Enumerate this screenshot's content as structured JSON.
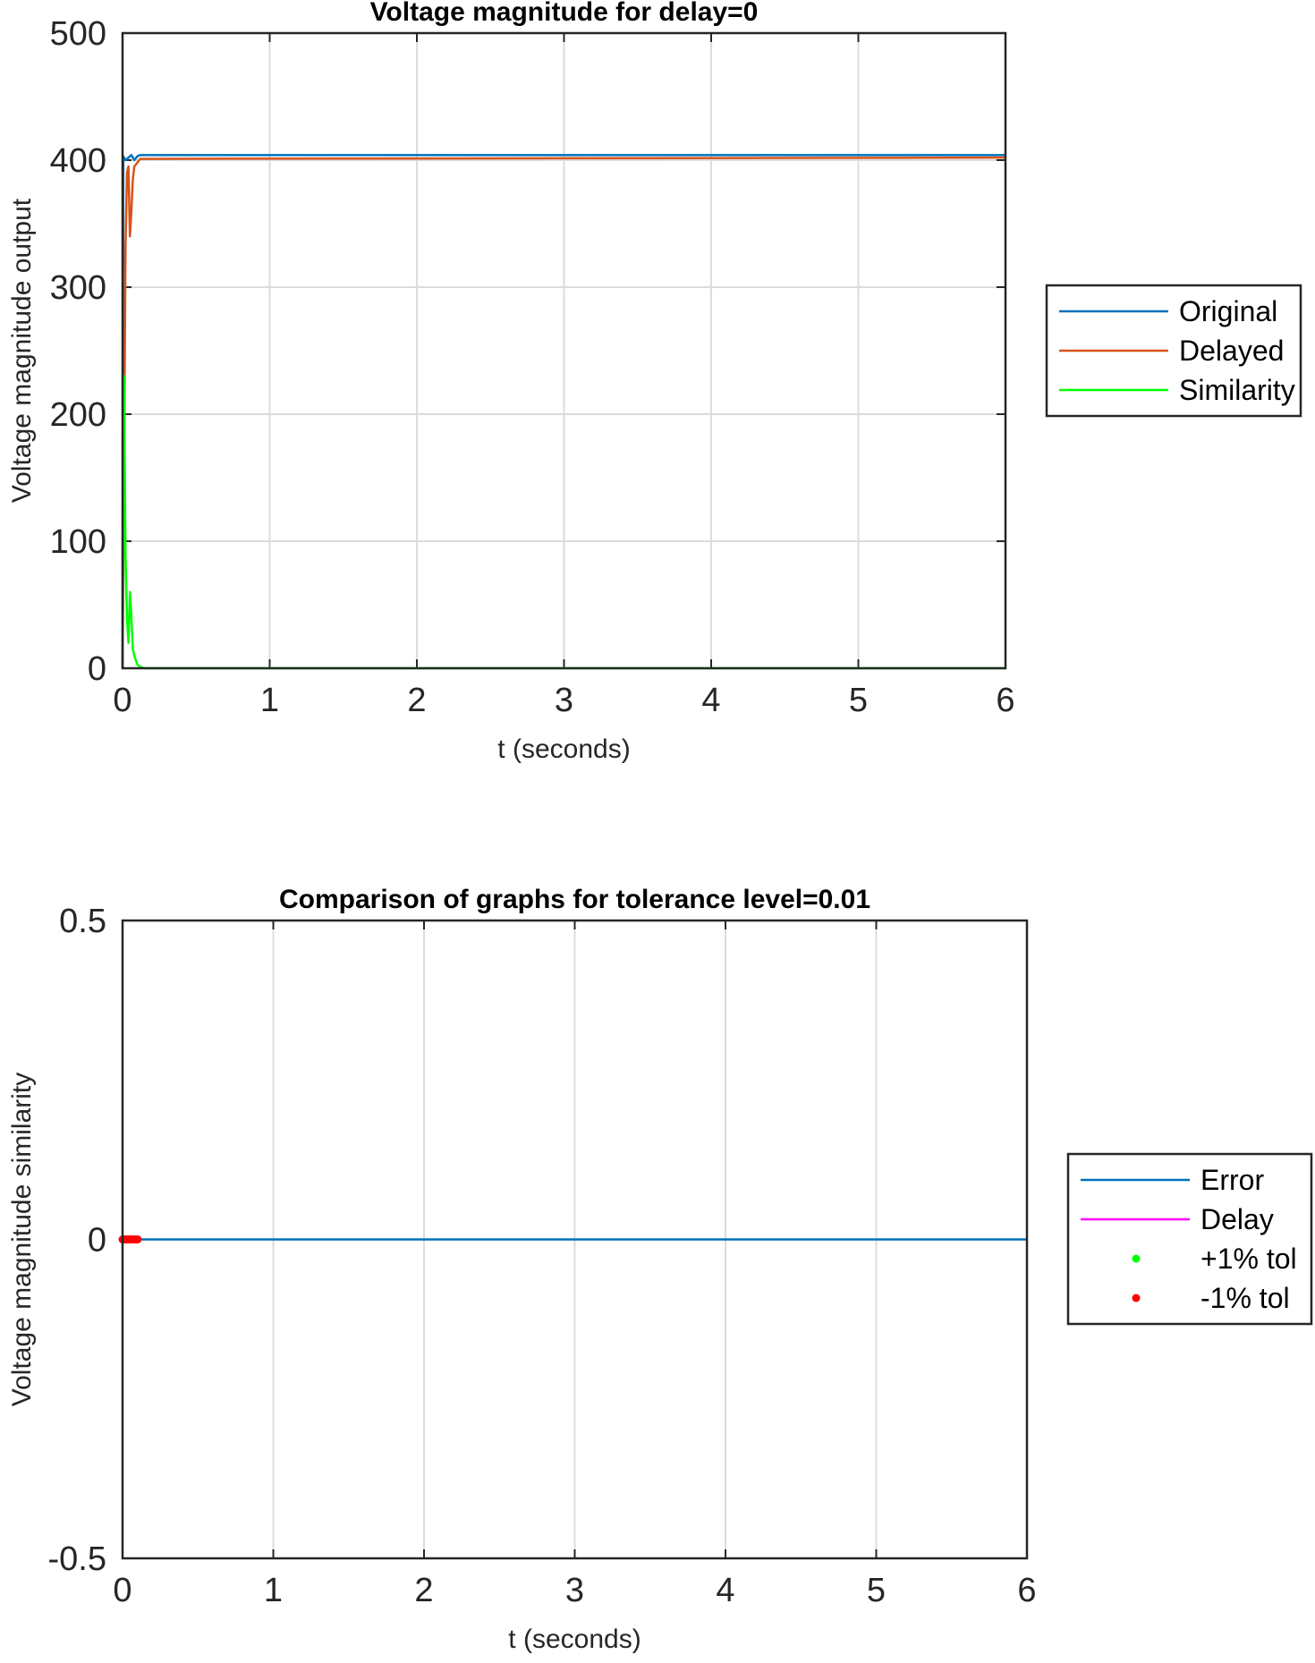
{
  "chart_data": [
    {
      "type": "line",
      "title": "Voltage magnitude for delay=0",
      "xlabel": "t (seconds)",
      "ylabel": "Voltage magnitude output",
      "xlim": [
        0,
        6
      ],
      "ylim": [
        0,
        500
      ],
      "xticks": [
        "0",
        "1",
        "2",
        "3",
        "4",
        "5",
        "6"
      ],
      "yticks": [
        "0",
        "100",
        "200",
        "300",
        "400",
        "500"
      ],
      "grid": true,
      "legend_position": "outside-right",
      "series": [
        {
          "name": "Original",
          "color": "#0072BD",
          "x": [
            0,
            0.005,
            0.02,
            0.04,
            0.06,
            0.08,
            0.1,
            0.12,
            0.15,
            6
          ],
          "y": [
            0,
            403,
            400,
            402,
            404,
            400,
            403,
            404,
            404,
            404
          ]
        },
        {
          "name": "Delayed",
          "color": "#D95319",
          "x": [
            0,
            0.01,
            0.02,
            0.03,
            0.04,
            0.05,
            0.06,
            0.07,
            0.08,
            0.1,
            0.12,
            6
          ],
          "y": [
            0,
            150,
            330,
            390,
            395,
            340,
            360,
            385,
            395,
            398,
            401,
            402
          ]
        },
        {
          "name": "Similarity",
          "color": "#00FF00",
          "x": [
            0,
            0.01,
            0.02,
            0.03,
            0.04,
            0.05,
            0.06,
            0.07,
            0.08,
            0.1,
            0.12,
            0.15,
            6
          ],
          "y": [
            0,
            230,
            90,
            40,
            20,
            60,
            40,
            15,
            10,
            3,
            1,
            0,
            0
          ]
        }
      ]
    },
    {
      "type": "line",
      "title": "Comparison of graphs for tolerance level=0.01",
      "xlabel": "t (seconds)",
      "ylabel": "Voltage magnitude similarity",
      "xlim": [
        0,
        6
      ],
      "ylim": [
        -0.5,
        0.5
      ],
      "xticks": [
        "0",
        "1",
        "2",
        "3",
        "4",
        "5",
        "6"
      ],
      "yticks": [
        "-0.5",
        "0",
        "0.5"
      ],
      "grid": true,
      "legend_position": "outside-right",
      "series": [
        {
          "name": "Error",
          "color": "#0072BD",
          "style": "line",
          "x": [
            0,
            6
          ],
          "y": [
            0,
            0
          ]
        },
        {
          "name": "Delay",
          "color": "#FF00FF",
          "style": "line",
          "x": [],
          "y": []
        },
        {
          "name": "+1% tol",
          "color": "#00FF00",
          "style": "dot",
          "x": [],
          "y": []
        },
        {
          "name": "-1% tol",
          "color": "#FF0000",
          "style": "dot",
          "x": [
            0.0,
            0.01,
            0.02,
            0.03,
            0.04,
            0.05,
            0.06,
            0.07,
            0.08,
            0.09,
            0.1
          ],
          "y": [
            0,
            0,
            0,
            0,
            0,
            0,
            0,
            0,
            0,
            0,
            0
          ]
        }
      ]
    }
  ]
}
